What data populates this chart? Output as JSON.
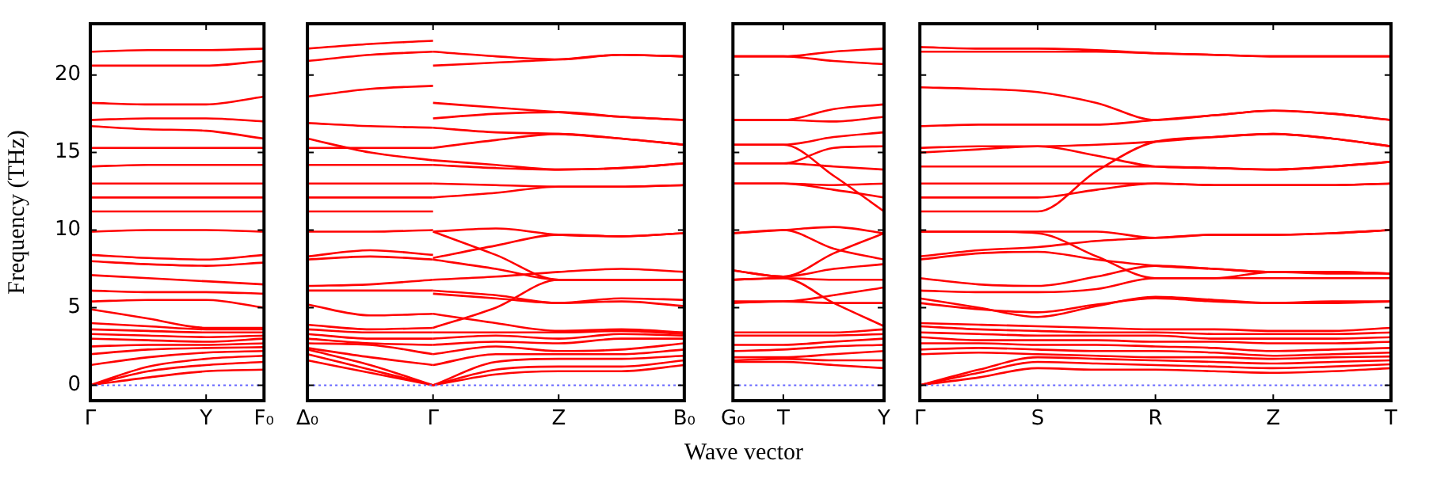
{
  "chart_data": [
    {
      "type": "line",
      "ylabel": "Frequency (THz)",
      "color": "#ff0000",
      "categories": [
        "Γ",
        null,
        "Y",
        "F₀"
      ],
      "ylim": [
        -1,
        23.3
      ],
      "yticks": [
        0,
        5,
        10,
        15,
        20
      ],
      "ref_lines": [
        {
          "axis": "y",
          "value": 0,
          "color": "#6666ff",
          "line_style": "dotted"
        }
      ],
      "series": [
        {
          "values": [
            21.5,
            21.6,
            21.6,
            21.7
          ]
        },
        {
          "values": [
            20.6,
            20.6,
            20.6,
            20.9
          ]
        },
        {
          "values": [
            18.2,
            18.1,
            18.1,
            18.6
          ]
        },
        {
          "values": [
            17.1,
            17.2,
            17.2,
            17.0
          ]
        },
        {
          "values": [
            16.7,
            16.5,
            16.4,
            15.9
          ]
        },
        {
          "values": [
            15.3,
            15.3,
            15.3,
            15.3
          ]
        },
        {
          "values": [
            14.1,
            14.2,
            14.2,
            14.2
          ]
        },
        {
          "values": [
            13.0,
            13.0,
            13.0,
            13.0
          ]
        },
        {
          "values": [
            12.1,
            12.1,
            12.1,
            12.1
          ]
        },
        {
          "values": [
            11.2,
            11.2,
            11.2,
            11.2
          ]
        },
        {
          "values": [
            9.9,
            10.0,
            10.0,
            9.9
          ]
        },
        {
          "values": [
            8.4,
            8.2,
            8.1,
            8.4
          ]
        },
        {
          "values": [
            8.0,
            7.8,
            7.7,
            7.9
          ]
        },
        {
          "values": [
            7.1,
            6.9,
            6.7,
            6.5
          ]
        },
        {
          "values": [
            6.1,
            6.0,
            6.0,
            5.9
          ]
        },
        {
          "values": [
            5.4,
            5.5,
            5.5,
            5.0
          ]
        },
        {
          "values": [
            4.9,
            4.3,
            3.7,
            3.7
          ]
        },
        {
          "values": [
            4.0,
            3.8,
            3.6,
            3.6
          ]
        },
        {
          "values": [
            3.6,
            3.5,
            3.4,
            3.4
          ]
        },
        {
          "values": [
            3.3,
            3.2,
            3.1,
            3.2
          ]
        },
        {
          "values": [
            3.0,
            2.9,
            2.8,
            3.0
          ]
        },
        {
          "values": [
            2.5,
            2.6,
            2.6,
            2.7
          ]
        },
        {
          "values": [
            2.0,
            2.3,
            2.4,
            2.45
          ]
        },
        {
          "values": [
            1.3,
            1.8,
            2.1,
            2.2
          ]
        },
        {
          "values": [
            0,
            1.2,
            1.7,
            1.9
          ]
        },
        {
          "values": [
            0,
            0.9,
            1.3,
            1.5
          ]
        },
        {
          "values": [
            0,
            0.5,
            0.9,
            1.0
          ]
        }
      ]
    },
    {
      "type": "line",
      "xlabel": "Wave vector",
      "color": "#ff0000",
      "categories": [
        "Δ₀",
        null,
        "Γ",
        null,
        "Z",
        null,
        "B₀"
      ],
      "ylim": [
        -1,
        23.3
      ],
      "yticks": [
        0,
        5,
        10,
        15,
        20
      ],
      "tick_labels": "x",
      "ref_lines": [
        {
          "axis": "y",
          "value": 0,
          "color": "#6666ff",
          "line_style": "dotted"
        }
      ],
      "series": [
        {
          "values": [
            21.7,
            22.0,
            22.2,
            null,
            null,
            null,
            null
          ]
        },
        {
          "values": [
            20.9,
            21.3,
            21.5,
            null,
            null,
            null,
            null
          ]
        },
        {
          "values": [
            18.6,
            19.1,
            19.3,
            null,
            null,
            null,
            null
          ]
        },
        {
          "values": [
            16.9,
            16.7,
            16.6,
            null,
            null,
            null,
            null
          ]
        },
        {
          "values": [
            15.9,
            15.0,
            14.5,
            null,
            null,
            null,
            null
          ]
        },
        {
          "values": [
            15.3,
            15.3,
            15.3,
            null,
            null,
            null,
            null
          ]
        },
        {
          "values": [
            14.2,
            14.2,
            14.2,
            null,
            null,
            null,
            null
          ]
        },
        {
          "values": [
            13.0,
            13.0,
            13.0,
            null,
            null,
            null,
            null
          ]
        },
        {
          "values": [
            12.1,
            12.1,
            12.1,
            null,
            null,
            null,
            null
          ]
        },
        {
          "values": [
            11.2,
            11.2,
            11.2,
            null,
            null,
            null,
            null
          ]
        },
        {
          "values": [
            9.9,
            9.9,
            10.0,
            null,
            null,
            null,
            null
          ]
        },
        {
          "values": [
            8.3,
            8.7,
            8.4,
            null,
            null,
            null,
            null
          ]
        },
        {
          "values": [
            8.1,
            8.3,
            8.1,
            null,
            null,
            null,
            null
          ]
        },
        {
          "values": [
            6.4,
            6.5,
            6.8,
            null,
            null,
            null,
            null
          ]
        },
        {
          "values": [
            6.1,
            6.1,
            6.1,
            null,
            null,
            null,
            null
          ]
        },
        {
          "values": [
            5.2,
            4.5,
            4.6,
            null,
            null,
            null,
            null
          ]
        },
        {
          "values": [
            3.9,
            3.6,
            3.7,
            null,
            null,
            null,
            null
          ]
        },
        {
          "values": [
            3.6,
            3.4,
            3.4,
            null,
            null,
            null,
            null
          ]
        },
        {
          "values": [
            3.3,
            3.0,
            3.0,
            null,
            null,
            null,
            null
          ]
        },
        {
          "values": [
            3.0,
            2.7,
            2.6,
            null,
            null,
            null,
            null
          ]
        },
        {
          "values": [
            2.7,
            2.6,
            2.0,
            null,
            null,
            null,
            null
          ]
        },
        {
          "values": [
            2.4,
            1.8,
            1.3,
            null,
            null,
            null,
            null
          ]
        },
        {
          "values": [
            2.3,
            1.3,
            0,
            null,
            null,
            null,
            null
          ]
        },
        {
          "values": [
            2.0,
            1.0,
            0,
            null,
            null,
            null,
            null
          ]
        },
        {
          "values": [
            1.6,
            0.8,
            0,
            null,
            null,
            null,
            null
          ]
        },
        {
          "values": [
            null,
            null,
            21.5,
            21.2,
            21.0,
            21.3,
            21.2
          ]
        },
        {
          "values": [
            null,
            null,
            20.6,
            20.8,
            21.0,
            21.3,
            21.2
          ]
        },
        {
          "values": [
            null,
            null,
            18.2,
            17.9,
            17.6,
            17.3,
            17.1
          ]
        },
        {
          "values": [
            null,
            null,
            17.2,
            17.5,
            17.6,
            17.3,
            17.1
          ]
        },
        {
          "values": [
            null,
            null,
            16.6,
            16.3,
            16.2,
            15.9,
            15.5
          ]
        },
        {
          "values": [
            null,
            null,
            15.3,
            15.8,
            16.2,
            15.9,
            15.5
          ]
        },
        {
          "values": [
            null,
            null,
            14.5,
            14.2,
            13.9,
            14.0,
            14.3
          ]
        },
        {
          "values": [
            null,
            null,
            14.2,
            14.0,
            13.9,
            14.0,
            14.3
          ]
        },
        {
          "values": [
            null,
            null,
            13.0,
            12.9,
            12.8,
            12.8,
            12.9
          ]
        },
        {
          "values": [
            null,
            null,
            12.1,
            12.4,
            12.8,
            12.8,
            12.9
          ]
        },
        {
          "values": [
            null,
            null,
            9.9,
            10.1,
            9.7,
            9.6,
            9.8
          ]
        },
        {
          "values": [
            null,
            null,
            9.9,
            8.4,
            6.8,
            6.8,
            6.8
          ]
        },
        {
          "values": [
            null,
            null,
            8.2,
            9.0,
            9.7,
            9.6,
            9.8
          ]
        },
        {
          "values": [
            null,
            null,
            8.1,
            7.5,
            6.8,
            6.8,
            6.8
          ]
        },
        {
          "values": [
            null,
            null,
            6.8,
            7.0,
            7.3,
            7.5,
            7.3
          ]
        },
        {
          "values": [
            null,
            null,
            6.1,
            5.8,
            5.3,
            5.4,
            5.1
          ]
        },
        {
          "values": [
            null,
            null,
            5.9,
            5.6,
            5.3,
            5.6,
            5.5
          ]
        },
        {
          "values": [
            null,
            null,
            3.7,
            5.0,
            6.8,
            6.8,
            6.8
          ]
        },
        {
          "values": [
            null,
            null,
            4.6,
            4.0,
            3.5,
            3.6,
            3.4
          ]
        },
        {
          "values": [
            null,
            null,
            3.4,
            3.4,
            3.4,
            3.5,
            3.3
          ]
        },
        {
          "values": [
            null,
            null,
            3.0,
            3.2,
            3.0,
            3.3,
            3.2
          ]
        },
        {
          "values": [
            null,
            null,
            2.6,
            2.8,
            2.7,
            3.0,
            3.0
          ]
        },
        {
          "values": [
            null,
            null,
            2.0,
            2.5,
            2.2,
            2.3,
            2.7
          ]
        },
        {
          "values": [
            null,
            null,
            1.3,
            2.0,
            2.0,
            2.0,
            2.3
          ]
        },
        {
          "values": [
            null,
            null,
            0,
            1.5,
            1.7,
            1.7,
            1.9
          ]
        },
        {
          "values": [
            null,
            null,
            0,
            1.0,
            1.2,
            1.2,
            1.6
          ]
        },
        {
          "values": [
            null,
            null,
            0,
            0.7,
            0.9,
            0.9,
            1.3
          ]
        }
      ]
    },
    {
      "type": "line",
      "color": "#ff0000",
      "categories": [
        "G₀",
        "T",
        null,
        "Y"
      ],
      "ylim": [
        -1,
        23.3
      ],
      "yticks": [
        0,
        5,
        10,
        15,
        20
      ],
      "tick_labels": "x",
      "ref_lines": [
        {
          "axis": "y",
          "value": 0,
          "color": "#6666ff",
          "line_style": "dotted"
        }
      ],
      "series": [
        {
          "values": [
            21.2,
            21.2,
            21.5,
            21.7
          ]
        },
        {
          "values": [
            21.2,
            21.2,
            20.9,
            20.7
          ]
        },
        {
          "values": [
            17.1,
            17.1,
            17.8,
            18.1
          ]
        },
        {
          "values": [
            17.1,
            17.1,
            17.0,
            17.3
          ]
        },
        {
          "values": [
            15.5,
            15.5,
            16.0,
            16.3
          ]
        },
        {
          "values": [
            15.5,
            15.5,
            13.5,
            11.2
          ]
        },
        {
          "values": [
            14.3,
            14.3,
            15.3,
            15.4
          ]
        },
        {
          "values": [
            14.3,
            14.3,
            14.1,
            13.9
          ]
        },
        {
          "values": [
            13.0,
            13.0,
            12.9,
            13.0
          ]
        },
        {
          "values": [
            13.0,
            13.0,
            12.6,
            12.1
          ]
        },
        {
          "values": [
            9.8,
            10.0,
            10.2,
            9.8
          ]
        },
        {
          "values": [
            9.8,
            10.0,
            8.8,
            8.1
          ]
        },
        {
          "values": [
            7.4,
            7.0,
            8.5,
            9.8
          ]
        },
        {
          "values": [
            7.4,
            7.0,
            7.5,
            7.8
          ]
        },
        {
          "values": [
            6.8,
            6.9,
            6.8,
            6.8
          ]
        },
        {
          "values": [
            6.8,
            6.9,
            5.3,
            3.8
          ]
        },
        {
          "values": [
            5.4,
            5.4,
            5.8,
            6.3
          ]
        },
        {
          "values": [
            5.3,
            5.4,
            5.3,
            5.3
          ]
        },
        {
          "values": [
            3.4,
            3.4,
            3.4,
            3.6
          ]
        },
        {
          "values": [
            3.2,
            3.2,
            3.2,
            3.3
          ]
        },
        {
          "values": [
            2.6,
            2.6,
            2.8,
            3.0
          ]
        },
        {
          "values": [
            2.2,
            2.3,
            2.5,
            2.6
          ]
        },
        {
          "values": [
            1.8,
            1.8,
            2.0,
            2.2
          ]
        },
        {
          "values": [
            1.6,
            1.7,
            1.6,
            1.6
          ]
        },
        {
          "values": [
            1.5,
            1.5,
            1.3,
            1.1
          ]
        }
      ]
    },
    {
      "type": "line",
      "color": "#ff0000",
      "categories": [
        "Γ",
        null,
        "S",
        null,
        "R",
        null,
        "Z",
        null,
        "T"
      ],
      "ylim": [
        -1,
        23.3
      ],
      "yticks": [
        0,
        5,
        10,
        15,
        20
      ],
      "tick_labels": "x",
      "ref_lines": [
        {
          "axis": "y",
          "value": 0,
          "color": "#6666ff",
          "line_style": "dotted"
        }
      ],
      "series": [
        {
          "values": [
            21.8,
            21.7,
            21.7,
            21.6,
            21.4,
            21.3,
            21.2,
            21.2,
            21.2
          ]
        },
        {
          "values": [
            21.5,
            21.5,
            21.5,
            21.5,
            21.4,
            21.3,
            21.2,
            21.2,
            21.2
          ]
        },
        {
          "values": [
            19.2,
            19.1,
            18.9,
            18.2,
            17.1,
            17.4,
            17.7,
            17.5,
            17.1
          ]
        },
        {
          "values": [
            16.7,
            16.8,
            16.8,
            16.8,
            17.1,
            17.4,
            17.7,
            17.5,
            17.1
          ]
        },
        {
          "values": [
            15.3,
            15.4,
            15.4,
            15.5,
            15.7,
            16.0,
            16.2,
            15.9,
            15.4
          ]
        },
        {
          "values": [
            15.0,
            15.2,
            15.4,
            14.8,
            14.1,
            14.0,
            13.9,
            14.1,
            14.4
          ]
        },
        {
          "values": [
            14.1,
            14.1,
            14.1,
            14.1,
            14.1,
            14.0,
            13.9,
            14.1,
            14.4
          ]
        },
        {
          "values": [
            13.0,
            13.0,
            13.0,
            13.0,
            13.0,
            12.9,
            12.9,
            12.9,
            13.0
          ]
        },
        {
          "values": [
            12.1,
            12.1,
            12.1,
            12.6,
            13.0,
            12.9,
            12.9,
            12.9,
            13.0
          ]
        },
        {
          "values": [
            11.2,
            11.2,
            11.2,
            13.8,
            15.7,
            16.0,
            16.2,
            15.9,
            15.4
          ]
        },
        {
          "values": [
            9.9,
            9.9,
            9.9,
            9.9,
            9.5,
            9.7,
            9.7,
            9.8,
            10.0
          ]
        },
        {
          "values": [
            9.9,
            9.9,
            9.8,
            8.3,
            6.9,
            6.9,
            7.3,
            7.2,
            7.2
          ]
        },
        {
          "values": [
            8.3,
            8.7,
            8.9,
            9.3,
            9.5,
            9.7,
            9.7,
            9.8,
            10.0
          ]
        },
        {
          "values": [
            8.1,
            8.5,
            8.6,
            8.1,
            7.7,
            7.5,
            7.3,
            7.3,
            7.2
          ]
        },
        {
          "values": [
            6.9,
            6.5,
            6.4,
            7.0,
            7.7,
            7.5,
            7.3,
            7.3,
            7.2
          ]
        },
        {
          "values": [
            6.1,
            6.0,
            6.0,
            6.2,
            6.9,
            6.9,
            6.9,
            6.9,
            6.9
          ]
        },
        {
          "values": [
            5.6,
            5.0,
            4.4,
            5.1,
            5.7,
            5.5,
            5.3,
            5.4,
            5.4
          ]
        },
        {
          "values": [
            5.3,
            4.9,
            4.7,
            5.2,
            5.6,
            5.4,
            5.3,
            5.3,
            5.4
          ]
        },
        {
          "values": [
            4.0,
            3.9,
            3.8,
            3.7,
            3.6,
            3.6,
            3.5,
            3.5,
            3.7
          ]
        },
        {
          "values": [
            3.8,
            3.6,
            3.5,
            3.4,
            3.4,
            3.3,
            3.3,
            3.3,
            3.4
          ]
        },
        {
          "values": [
            3.4,
            3.3,
            3.2,
            3.2,
            3.2,
            3.0,
            3.0,
            3.0,
            3.1
          ]
        },
        {
          "values": [
            3.1,
            2.9,
            2.9,
            2.9,
            2.8,
            2.8,
            2.7,
            2.7,
            2.8
          ]
        },
        {
          "values": [
            2.7,
            2.7,
            2.6,
            2.6,
            2.5,
            2.4,
            2.2,
            2.3,
            2.4
          ]
        },
        {
          "values": [
            2.3,
            2.4,
            2.3,
            2.2,
            2.2,
            2.1,
            1.9,
            2.0,
            2.1
          ]
        },
        {
          "values": [
            2.0,
            2.1,
            2.0,
            1.9,
            1.8,
            1.8,
            1.7,
            1.8,
            1.85
          ]
        },
        {
          "values": [
            0,
            1.0,
            1.8,
            1.7,
            1.6,
            1.5,
            1.4,
            1.5,
            1.6
          ]
        },
        {
          "values": [
            0,
            0.8,
            1.5,
            1.4,
            1.3,
            1.2,
            1.1,
            1.2,
            1.35
          ]
        },
        {
          "values": [
            0,
            0.5,
            1.1,
            1.0,
            1.0,
            0.9,
            0.8,
            0.9,
            1.1
          ]
        }
      ]
    }
  ]
}
